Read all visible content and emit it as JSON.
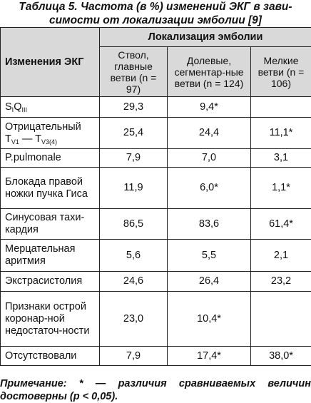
{
  "caption": {
    "line1": "Таблица 5. Частота (в %) изменений ЭКГ в зави-",
    "line2": "симости от локализации эмболии [9]"
  },
  "header": {
    "ecg_changes": "Изменения ЭКГ",
    "localization": "Локализация эмболии",
    "columns": [
      "Ствол, главные ветви (n = 97)",
      "Долевые, сегментар-ные ветви (n = 124)",
      "Мелкие ветви (n = 106)"
    ]
  },
  "rows": [
    {
      "name": "S",
      "values": [
        "29,3",
        "9,4*",
        ""
      ]
    },
    {
      "name": "Отрицательный",
      "values": [
        "25,4",
        "24,4",
        "11,1*"
      ]
    },
    {
      "name": "P.pulmonale",
      "values": [
        "7,9",
        "7,0",
        "3,1"
      ]
    },
    {
      "name": "Блокада правой ножки пучка Гиса",
      "values": [
        "11,9",
        "6,0*",
        "1,1*"
      ]
    },
    {
      "name": "Синусовая тахи-кардия",
      "values": [
        "86,5",
        "83,6",
        "61,4*"
      ]
    },
    {
      "name": "Мерцательная аритмия",
      "values": [
        "5,6",
        "5,5",
        "2,1"
      ]
    },
    {
      "name": "Экстрасистолия",
      "values": [
        "24,6",
        "26,4",
        "23,2"
      ]
    },
    {
      "name": "Признаки острой коронар-ной недостаточ-ности",
      "values": [
        "23,0",
        "10,4*",
        ""
      ]
    },
    {
      "name": "Отсутствовали",
      "values": [
        "7,9",
        "17,4*",
        "38,0*"
      ]
    }
  ],
  "row_subtexts": {
    "sq_s_sub": "I",
    "sq_q": "Q",
    "sq_q_sub": "III",
    "neg_t1": "T",
    "neg_t1_sub": "V1",
    "neg_dash": " — T",
    "neg_t2_sub": "V3(4)"
  },
  "note": "Примечание: * — различия сравниваемых величин достоверны (p < 0,05)."
}
